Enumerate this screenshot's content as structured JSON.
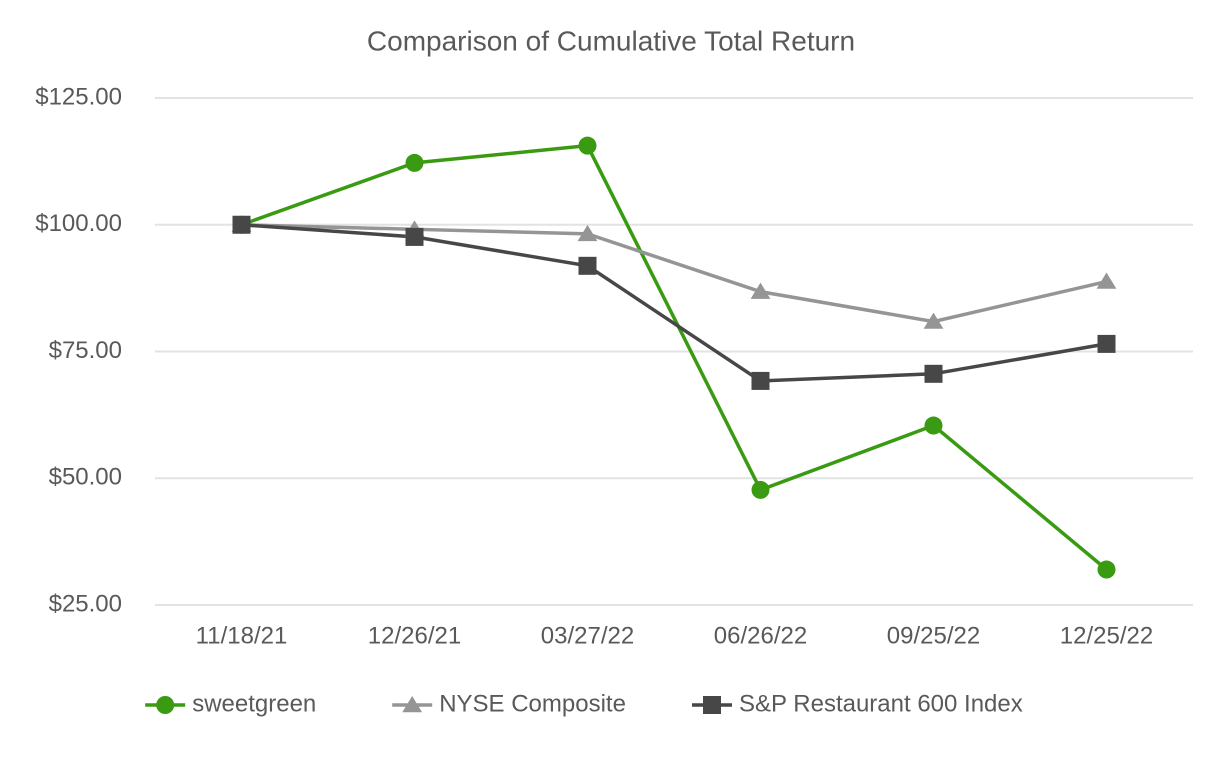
{
  "chart_data": {
    "type": "line",
    "title": "Comparison of Cumulative Total Return",
    "categories": [
      "11/18/21",
      "12/26/21",
      "03/27/22",
      "06/26/22",
      "09/25/22",
      "12/25/22"
    ],
    "series": [
      {
        "name": "sweetgreen",
        "color": "#3a9a12",
        "marker": "circle",
        "values": [
          100,
          112.2,
          115.6,
          47.7,
          60.4,
          32.0
        ]
      },
      {
        "name": "NYSE Composite",
        "color": "#959595",
        "marker": "triangle",
        "values": [
          100,
          99.1,
          98.2,
          86.8,
          80.9,
          88.8
        ]
      },
      {
        "name": "S&P Restaurant 600 Index",
        "color": "#474747",
        "marker": "square",
        "values": [
          100,
          97.6,
          91.9,
          69.2,
          70.6,
          76.5
        ]
      }
    ],
    "ylim": [
      25,
      125
    ],
    "yticks": [
      {
        "value": 25,
        "label": "$25.00"
      },
      {
        "value": 50,
        "label": "$50.00"
      },
      {
        "value": 75,
        "label": "$75.00"
      },
      {
        "value": 100,
        "label": "$100.00"
      },
      {
        "value": 125,
        "label": "$125.00"
      }
    ],
    "grid": true,
    "legend": "bottom"
  }
}
